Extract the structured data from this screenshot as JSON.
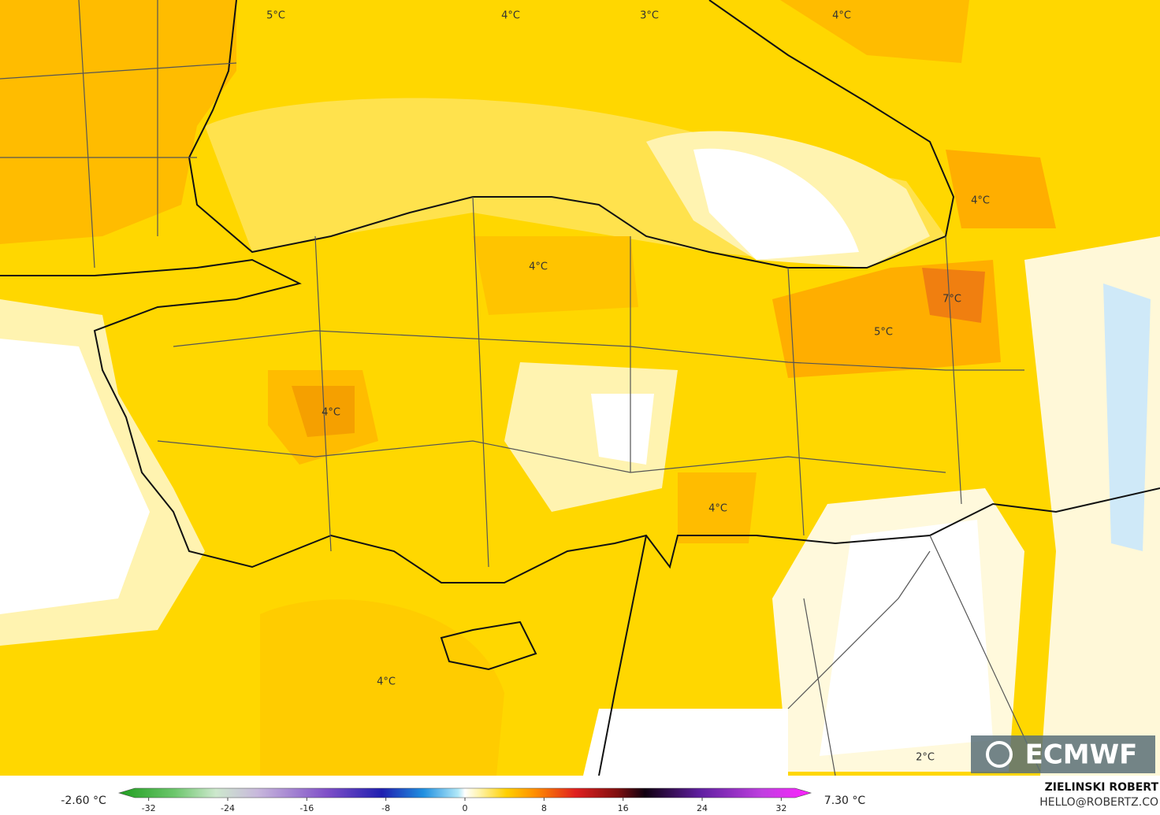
{
  "map": {
    "labels": [
      "5°C",
      "4°C",
      "3°C",
      "4°C",
      "4°C",
      "4°C",
      "7°C",
      "5°C",
      "4°C",
      "4°C",
      "4°C",
      "2°C"
    ],
    "logo": "ECMWF",
    "author": "ZIELINSKI ROBERT",
    "contact": "HELLO@ROBERTZ.CO"
  },
  "colorbar": {
    "min_label": "-2.60 °C",
    "max_label": "7.30 °C",
    "lim": [
      -35,
      35
    ],
    "ticks": [
      -32,
      -24,
      -16,
      -8,
      0,
      8,
      16,
      24,
      32
    ]
  }
}
